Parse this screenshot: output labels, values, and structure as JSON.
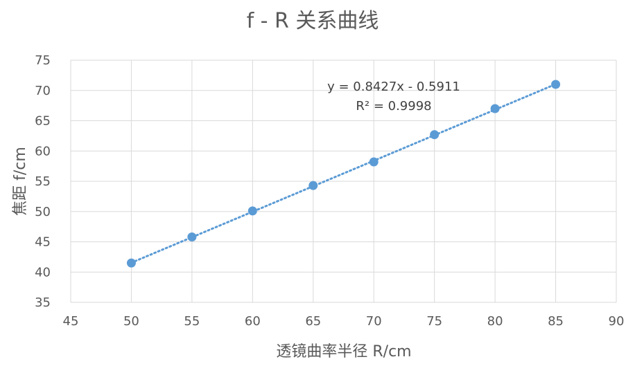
{
  "chart_data": {
    "type": "scatter",
    "title": "f - R 关系曲线",
    "xlabel": "透镜曲率半径 R/cm",
    "ylabel": "焦距 f/cm",
    "xlim": [
      45,
      90
    ],
    "ylim": [
      35,
      75
    ],
    "xticks": [
      45,
      50,
      55,
      60,
      65,
      70,
      75,
      80,
      85,
      90
    ],
    "yticks": [
      35,
      40,
      45,
      50,
      55,
      60,
      65,
      70,
      75
    ],
    "grid": true,
    "series": [
      {
        "points": [
          {
            "x": 50,
            "y": 41.5
          },
          {
            "x": 55,
            "y": 45.8
          },
          {
            "x": 60,
            "y": 50.1
          },
          {
            "x": 65,
            "y": 54.3
          },
          {
            "x": 70,
            "y": 58.2
          },
          {
            "x": 75,
            "y": 62.7
          },
          {
            "x": 80,
            "y": 67.0
          },
          {
            "x": 85,
            "y": 71.0
          }
        ],
        "color": "#5b9bd5"
      }
    ],
    "trendline": {
      "type": "linear",
      "slope": 0.8427,
      "intercept": -0.5911,
      "x_range": [
        50,
        85
      ],
      "style": "dotted",
      "equation_text": "y = 0.8427x - 0.5911",
      "r2_text": "R² = 0.9998"
    }
  }
}
